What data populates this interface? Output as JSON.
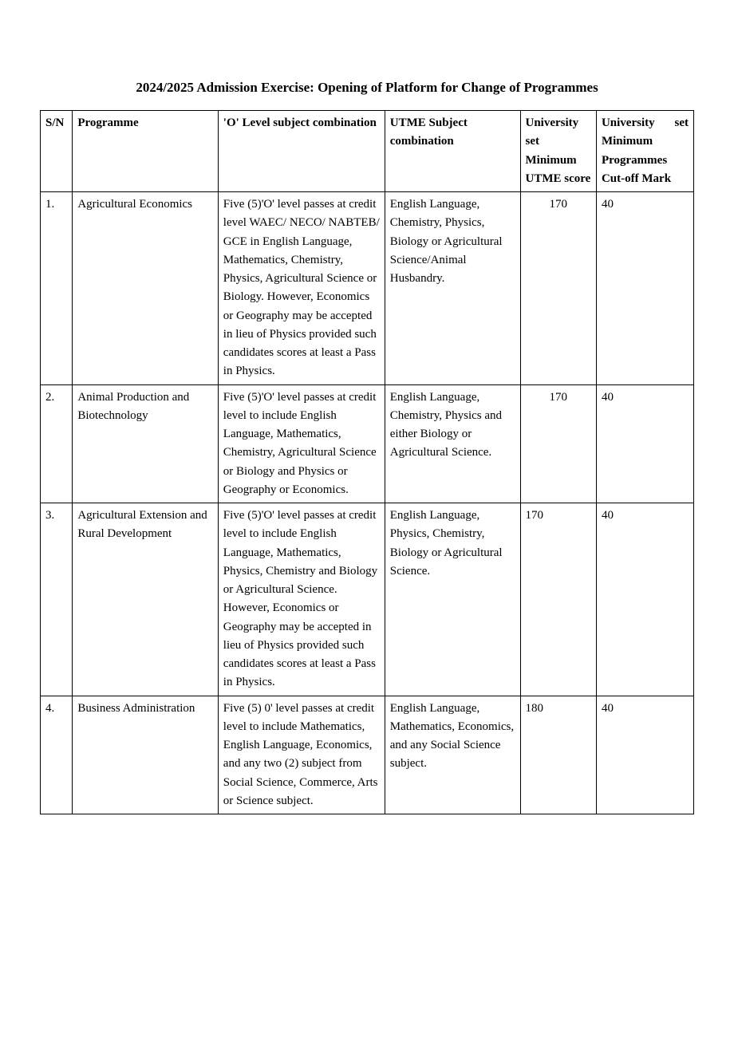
{
  "title": "2024/2025 Admission Exercise: Opening of Platform for Change of Programmes",
  "table": {
    "columns": {
      "sn": "S/N",
      "programme": "Programme",
      "olevel": "'O' Level subject combination",
      "utme": "UTME Subject combination",
      "score": "University set Minimum UTME score",
      "cutoff_l1": "University set",
      "cutoff_l2": "Minimum",
      "cutoff_l3": "Programmes",
      "cutoff_l4": "Cut-off Mark"
    },
    "rows": [
      {
        "sn": "1.",
        "programme": "Agricultural Economics",
        "olevel": "Five (5)'O' level passes at credit level WAEC/ NECO/ NABTEB/ GCE in English Language, Mathematics, Chemistry, Physics, Agricultural Science or Biology. However, Economics or Geography may be accepted in lieu of Physics provided such candidates scores at least a Pass in Physics.",
        "utme": "English Language, Chemistry, Physics, Biology or Agricultural Science/Animal Husbandry.",
        "score": "170",
        "score_align": "center",
        "cutoff": "40"
      },
      {
        "sn": "2.",
        "programme": "Animal Production and Biotechnology",
        "olevel": "Five (5)'O' level passes at credit level to include English Language, Mathematics, Chemistry, Agricultural Science or Biology and Physics or Geography or Economics.",
        "utme": "English Language, Chemistry, Physics and either Biology or Agricultural Science.",
        "score": "170",
        "score_align": "center",
        "cutoff": "40"
      },
      {
        "sn": "3.",
        "programme": "Agricultural Extension and Rural Development",
        "olevel": "Five (5)'O' level passes at credit level to include English Language, Mathematics, Physics, Chemistry and Biology or Agricultural Science. However, Economics or Geography may be accepted in lieu of Physics provided such candidates scores at least a Pass in Physics.",
        "utme": "English Language, Physics, Chemistry, Biology or Agricultural Science.",
        "score": "170",
        "score_align": "left",
        "cutoff": "40"
      },
      {
        "sn": "4.",
        "programme": "Business Administration",
        "olevel": "Five (5) 0' level passes at credit level to include Mathematics, English Language, Economics, and any two (2) subject from Social Science, Commerce, Arts or Science subject.",
        "utme": "English Language, Mathematics, Economics, and any Social Science subject.",
        "score": "180",
        "score_align": "left",
        "cutoff": "40"
      }
    ]
  }
}
